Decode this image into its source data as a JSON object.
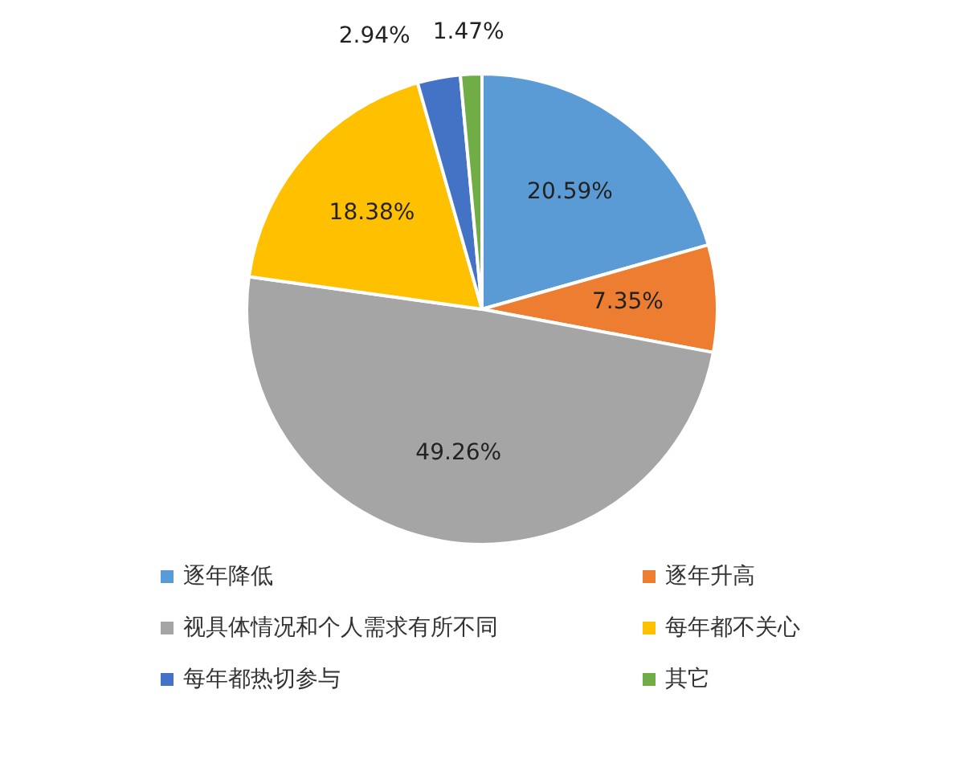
{
  "chart_data": {
    "type": "pie",
    "categories": [
      "逐年降低",
      "逐年升高",
      "视具体情况和个人需求有所不同",
      "每年都不关心",
      "每年都热切参与",
      "其它"
    ],
    "values": [
      20.59,
      7.35,
      49.26,
      18.38,
      2.94,
      1.47
    ],
    "colors": [
      "#5b9bd5",
      "#ed7d31",
      "#a5a5a5",
      "#ffc000",
      "#4472c4",
      "#70ad47"
    ],
    "value_labels": [
      "20.59%",
      "7.35%",
      "49.26%",
      "18.38%",
      "2.94%",
      "1.47%"
    ],
    "legend": "bottom"
  }
}
